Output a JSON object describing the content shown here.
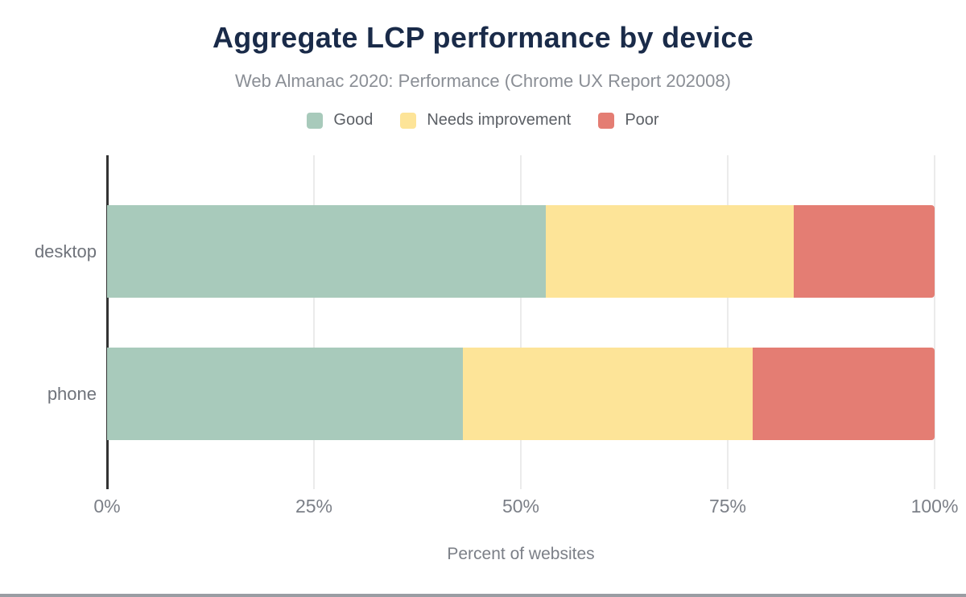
{
  "title": "Aggregate LCP performance by device",
  "subtitle": "Web Almanac 2020: Performance (Chrome UX Report 202008)",
  "colors": {
    "title_text": "#1a2b49",
    "subtitle_text": "#8a8e95",
    "legend_text": "#5c6066",
    "axis_text": "#7b7f87",
    "category_text": "#6f737b",
    "axis_line": "#333333",
    "gridline": "#ebebeb",
    "good": "#a8cabb",
    "needs_improvement": "#fde498",
    "poor": "#e47d73",
    "bottom_rule": "#9a9da3"
  },
  "chart_data": {
    "type": "bar",
    "orientation": "horizontal",
    "stacked": true,
    "categories": [
      "desktop",
      "phone"
    ],
    "series": [
      {
        "name": "Good",
        "color_key": "good",
        "values": [
          53,
          43
        ]
      },
      {
        "name": "Needs improvement",
        "color_key": "needs_improvement",
        "values": [
          30,
          35
        ]
      },
      {
        "name": "Poor",
        "color_key": "poor",
        "values": [
          17,
          22
        ]
      }
    ],
    "x_ticks": [
      "0%",
      "25%",
      "50%",
      "75%",
      "100%"
    ],
    "xlim": [
      0,
      100
    ],
    "grid": true,
    "legend_position": "top",
    "xlabel": "Percent of websites",
    "ylabel": ""
  }
}
